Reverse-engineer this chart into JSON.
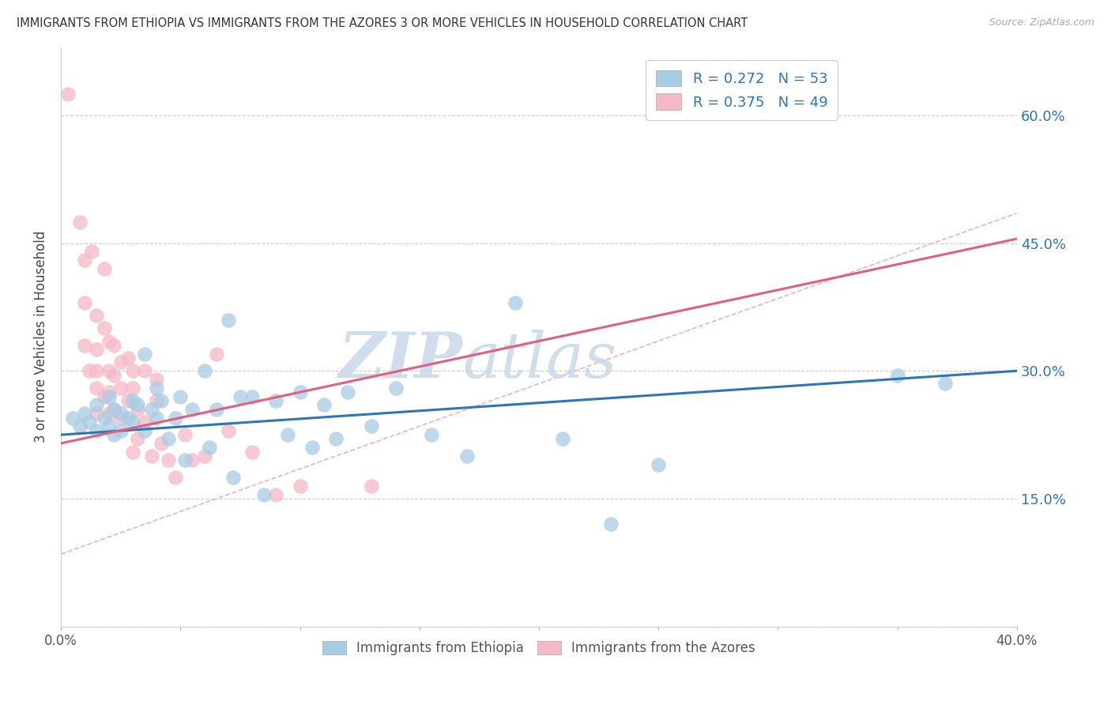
{
  "title": "IMMIGRANTS FROM ETHIOPIA VS IMMIGRANTS FROM THE AZORES 3 OR MORE VEHICLES IN HOUSEHOLD CORRELATION CHART",
  "source": "Source: ZipAtlas.com",
  "ylabel": "3 or more Vehicles in Household",
  "y_ticks": [
    0.0,
    0.15,
    0.3,
    0.45,
    0.6
  ],
  "y_tick_labels": [
    "",
    "15.0%",
    "30.0%",
    "45.0%",
    "60.0%"
  ],
  "xlim": [
    0.0,
    0.4
  ],
  "ylim": [
    0.02,
    0.68
  ],
  "blue_R": 0.272,
  "blue_N": 53,
  "pink_R": 0.375,
  "pink_N": 49,
  "blue_color": "#a8cce4",
  "pink_color": "#f5b8c8",
  "blue_line_color": "#2e75b6",
  "pink_line_color": "#e06080",
  "legend_text_color": "#2e75b6",
  "watermark_zip": "ZIP",
  "watermark_atlas": "atlas",
  "legend_label_blue": "Immigrants from Ethiopia",
  "legend_label_pink": "Immigrants from the Azores",
  "blue_scatter_x": [
    0.005,
    0.008,
    0.01,
    0.012,
    0.015,
    0.015,
    0.018,
    0.02,
    0.02,
    0.022,
    0.022,
    0.025,
    0.025,
    0.028,
    0.03,
    0.03,
    0.032,
    0.035,
    0.035,
    0.038,
    0.04,
    0.04,
    0.042,
    0.045,
    0.048,
    0.05,
    0.052,
    0.055,
    0.06,
    0.062,
    0.065,
    0.07,
    0.072,
    0.075,
    0.08,
    0.085,
    0.09,
    0.095,
    0.1,
    0.105,
    0.11,
    0.115,
    0.12,
    0.13,
    0.14,
    0.155,
    0.17,
    0.19,
    0.21,
    0.23,
    0.25,
    0.35,
    0.37
  ],
  "blue_scatter_y": [
    0.245,
    0.235,
    0.25,
    0.24,
    0.26,
    0.23,
    0.245,
    0.27,
    0.235,
    0.255,
    0.225,
    0.25,
    0.23,
    0.245,
    0.265,
    0.24,
    0.26,
    0.32,
    0.23,
    0.255,
    0.28,
    0.245,
    0.265,
    0.22,
    0.245,
    0.27,
    0.195,
    0.255,
    0.3,
    0.21,
    0.255,
    0.36,
    0.175,
    0.27,
    0.27,
    0.155,
    0.265,
    0.225,
    0.275,
    0.21,
    0.26,
    0.22,
    0.275,
    0.235,
    0.28,
    0.225,
    0.2,
    0.38,
    0.22,
    0.12,
    0.19,
    0.295,
    0.285
  ],
  "pink_scatter_x": [
    0.003,
    0.008,
    0.01,
    0.01,
    0.01,
    0.012,
    0.013,
    0.015,
    0.015,
    0.015,
    0.015,
    0.015,
    0.018,
    0.018,
    0.018,
    0.02,
    0.02,
    0.02,
    0.02,
    0.022,
    0.022,
    0.022,
    0.025,
    0.025,
    0.025,
    0.028,
    0.028,
    0.03,
    0.03,
    0.03,
    0.032,
    0.032,
    0.035,
    0.035,
    0.038,
    0.04,
    0.04,
    0.042,
    0.045,
    0.048,
    0.052,
    0.055,
    0.06,
    0.065,
    0.07,
    0.08,
    0.09,
    0.1,
    0.13
  ],
  "pink_scatter_y": [
    0.625,
    0.475,
    0.43,
    0.38,
    0.33,
    0.3,
    0.44,
    0.365,
    0.325,
    0.3,
    0.28,
    0.25,
    0.42,
    0.35,
    0.27,
    0.335,
    0.3,
    0.275,
    0.25,
    0.33,
    0.295,
    0.255,
    0.31,
    0.28,
    0.245,
    0.315,
    0.265,
    0.3,
    0.28,
    0.205,
    0.255,
    0.22,
    0.3,
    0.24,
    0.2,
    0.29,
    0.265,
    0.215,
    0.195,
    0.175,
    0.225,
    0.195,
    0.2,
    0.32,
    0.23,
    0.205,
    0.155,
    0.165,
    0.165
  ],
  "blue_trend_x": [
    0.0,
    0.4
  ],
  "blue_trend_y": [
    0.225,
    0.3
  ],
  "pink_trend_x": [
    0.0,
    0.4
  ],
  "pink_trend_y": [
    0.215,
    0.455
  ],
  "diag_line_x": [
    0.0,
    0.4
  ],
  "diag_line_y": [
    0.085,
    0.485
  ]
}
